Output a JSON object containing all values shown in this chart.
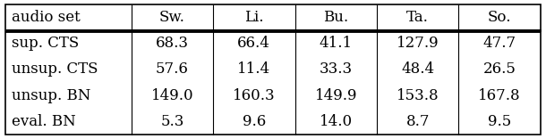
{
  "col_headers": [
    "audio set",
    "Sw.",
    "Li.",
    "Bu.",
    "Ta.",
    "So."
  ],
  "rows": [
    [
      "sup. CTS",
      "68.3",
      "66.4",
      "41.1",
      "127.9",
      "47.7"
    ],
    [
      "unsup. CTS",
      "57.6",
      "11.4",
      "33.3",
      "48.4",
      "26.5"
    ],
    [
      "unsup. BN",
      "149.0",
      "160.3",
      "149.9",
      "153.8",
      "167.8"
    ],
    [
      "eval. BN",
      "5.3",
      "9.6",
      "14.0",
      "8.7",
      "9.5"
    ]
  ],
  "font_size": 12,
  "background_color": "#ffffff",
  "text_color": "#000000",
  "fig_width": 6.1,
  "fig_height": 1.56
}
